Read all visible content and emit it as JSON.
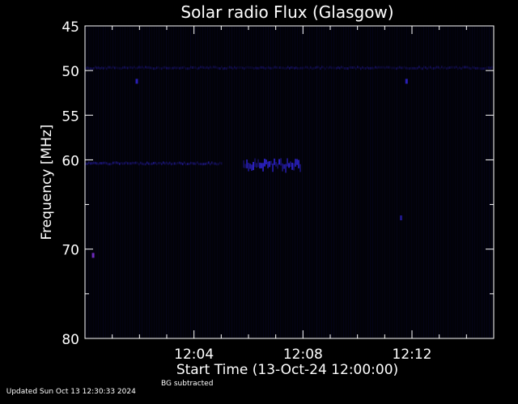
{
  "chart_data": {
    "type": "heatmap",
    "title": "Solar radio Flux (Glasgow)",
    "xlabel": "Start Time (13-Oct-24 12:00:00)",
    "ylabel": "Frequency [MHz]",
    "x_ticks": [
      "12:04",
      "12:08",
      "12:12"
    ],
    "x_tick_minutes": [
      4,
      8,
      12
    ],
    "xlim_minutes": [
      0,
      15
    ],
    "ylim": [
      45,
      80
    ],
    "y_reversed": true,
    "y_ticks": [
      45,
      50,
      55,
      60,
      70,
      80
    ],
    "colors": {
      "background": "#000000",
      "axis": "#ffffff",
      "signal": "#3a2cff",
      "faint": "#0a0a3a",
      "violet": "#7a30d0"
    },
    "features": [
      {
        "kind": "band",
        "freq_mhz": 49.7,
        "t_start_min": 0.0,
        "t_end_min": 15.0,
        "intensity": 0.35
      },
      {
        "kind": "band",
        "freq_mhz": 60.4,
        "t_start_min": 0.0,
        "t_end_min": 5.0,
        "intensity": 0.5
      },
      {
        "kind": "burst",
        "freq_mhz": 60.4,
        "t_start_min": 5.8,
        "t_end_min": 7.9,
        "intensity": 1.0
      },
      {
        "kind": "spot",
        "freq_mhz": 51.2,
        "t_min": 1.9,
        "intensity": 0.7
      },
      {
        "kind": "spot",
        "freq_mhz": 51.2,
        "t_min": 11.8,
        "intensity": 0.7
      },
      {
        "kind": "spot",
        "freq_mhz": 70.7,
        "t_min": 0.3,
        "intensity": 0.9,
        "color": "violet"
      },
      {
        "kind": "spot",
        "freq_mhz": 66.5,
        "t_min": 11.6,
        "intensity": 0.5
      }
    ]
  },
  "footer": {
    "updated": "Updated Sun Oct 13 12:30:33 2024",
    "bg_note": "BG subtracted"
  }
}
